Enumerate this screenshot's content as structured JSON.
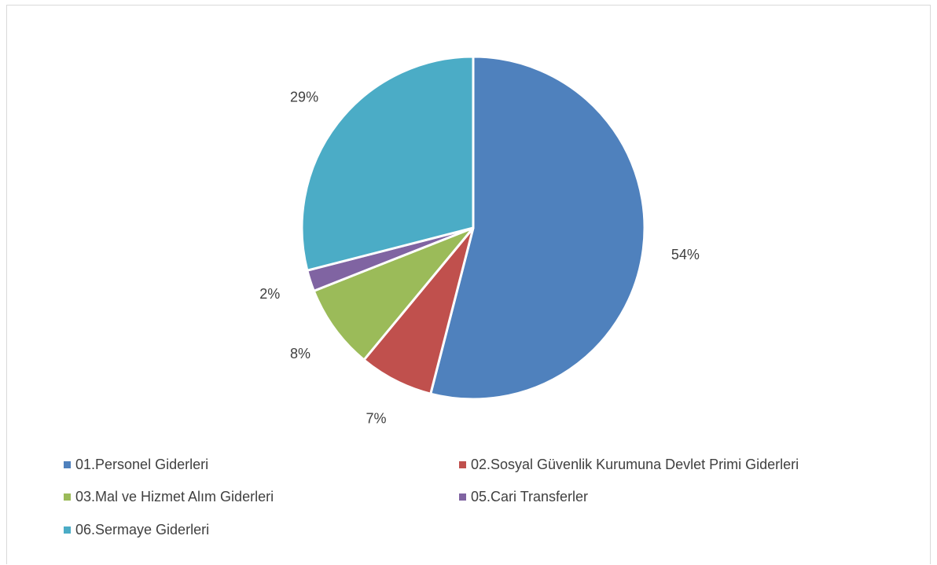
{
  "chart_data": {
    "type": "pie",
    "slices": [
      {
        "name": "01.Personel Giderleri",
        "value": 54,
        "label": "54%",
        "color": "#4f81bd"
      },
      {
        "name": "02.Sosyal Güvenlik Kurumuna Devlet Primi Giderleri",
        "value": 7,
        "label": "7%",
        "color": "#c0504d"
      },
      {
        "name": "03.Mal ve Hizmet Alım Giderleri",
        "value": 8,
        "label": "8%",
        "color": "#9bbb59"
      },
      {
        "name": "05.Cari Transferler",
        "value": 2,
        "label": "2%",
        "color": "#8064a2"
      },
      {
        "name": "06.Sermaye Giderleri",
        "value": 29,
        "label": "29%",
        "color": "#4bacc6"
      }
    ],
    "legend_position": "bottom"
  }
}
